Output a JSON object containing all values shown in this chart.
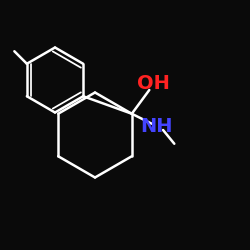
{
  "background_color": "#0a0a0a",
  "bond_color": "#ffffff",
  "oh_color": "#ff2222",
  "nh_color": "#4444ff",
  "carbon_color": "#ffffff",
  "bond_width": 1.8,
  "font_size_label": 14,
  "oh_label": "OH",
  "nh_label": "NH",
  "figsize": [
    2.5,
    2.5
  ],
  "dpi": 100
}
